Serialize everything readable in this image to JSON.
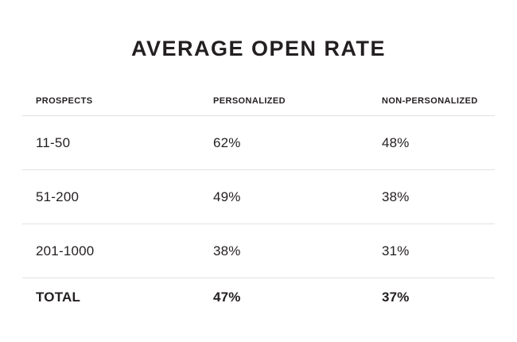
{
  "title": "AVERAGE OPEN RATE",
  "colors": {
    "text": "#231f20",
    "divider": "#e2e2e2",
    "background": "#ffffff"
  },
  "chart_data": {
    "type": "table",
    "title": "AVERAGE OPEN RATE",
    "columns": [
      "PROSPECTS",
      "PERSONALIZED",
      "NON-PERSONALIZED"
    ],
    "rows": [
      [
        "11-50",
        "62%",
        "48%"
      ],
      [
        "51-200",
        "49%",
        "38%"
      ],
      [
        "201-1000",
        "38%",
        "31%"
      ],
      [
        "TOTAL",
        "47%",
        "37%"
      ]
    ]
  }
}
